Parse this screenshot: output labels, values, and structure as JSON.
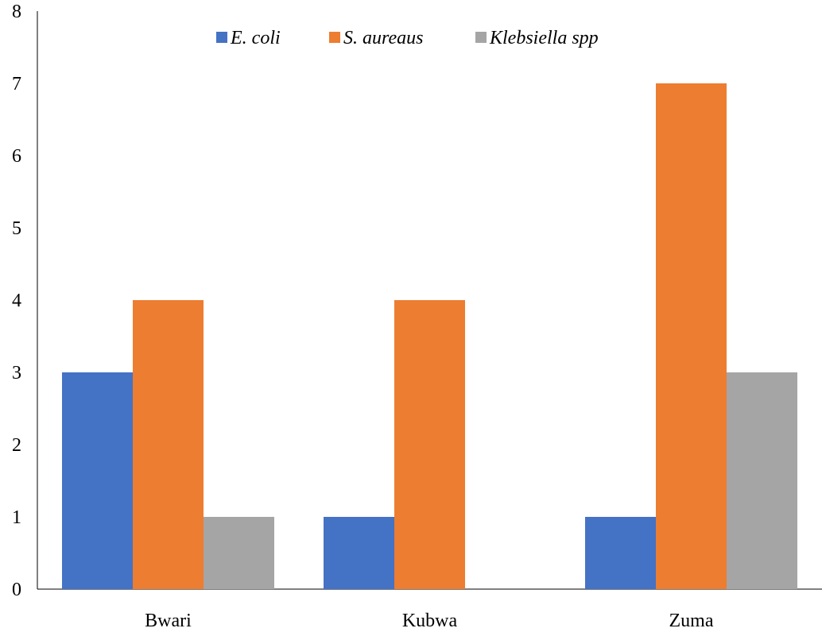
{
  "chart_data": {
    "type": "bar",
    "categories": [
      "Bwari",
      "Kubwa",
      "Zuma"
    ],
    "series": [
      {
        "name": "E. coli",
        "color": "#4472c4",
        "values": [
          3,
          1,
          1
        ]
      },
      {
        "name": "S. aureaus",
        "color": "#ed7d31",
        "values": [
          4,
          4,
          7
        ]
      },
      {
        "name": "Klebsiella spp",
        "color": "#a5a5a5",
        "values": [
          1,
          0,
          3
        ]
      }
    ],
    "title": "",
    "xlabel": "",
    "ylabel": "",
    "ylim": [
      0,
      8
    ],
    "yticks": [
      "0",
      "1",
      "2",
      "3",
      "4",
      "5",
      "6",
      "7",
      "8"
    ],
    "grid": false,
    "legend_position": "top"
  }
}
